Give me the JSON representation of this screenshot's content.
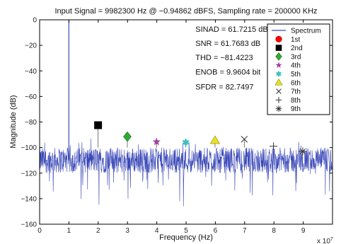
{
  "chart_data": {
    "type": "line",
    "title": "Input Signal = 9982300 Hz @ −0.94862 dBFS, Sampling rate = 200000 KHz",
    "xlabel": "Frequency (Hz)",
    "ylabel": "Magnitude (dB)",
    "x_exponent_label": "x 10",
    "x_exponent_power": "7",
    "xlim": [
      0,
      10
    ],
    "ylim": [
      -160,
      0
    ],
    "x_ticks": [
      "0",
      "1",
      "2",
      "3",
      "4",
      "5",
      "6",
      "7",
      "8",
      "9"
    ],
    "y_ticks": [
      "0",
      "−20",
      "−40",
      "−60",
      "−80",
      "−100",
      "−120",
      "−140",
      "−160"
    ],
    "x_tick_values": [
      0,
      1,
      2,
      3,
      4,
      5,
      6,
      7,
      8,
      9
    ],
    "y_tick_values": [
      0,
      -20,
      -40,
      -60,
      -80,
      -100,
      -120,
      -140,
      -160
    ],
    "grid": false,
    "legend_position": "top-right",
    "spectrum": {
      "name": "Spectrum",
      "color": "#3b49b8",
      "noise_floor_db": -110,
      "noise_spread_db": 10,
      "fundamental": {
        "x": 0.99823,
        "y": -0.94862
      }
    },
    "harmonics": [
      {
        "name": "1st",
        "x": 0.998,
        "y": -0.95,
        "marker": "circle",
        "color": "#ff0000"
      },
      {
        "name": "2nd",
        "x": 1.996,
        "y": -82.5,
        "marker": "square",
        "color": "#000000"
      },
      {
        "name": "3rd",
        "x": 2.995,
        "y": -91.5,
        "marker": "diamond",
        "color": "#33aa33"
      },
      {
        "name": "4th",
        "x": 3.993,
        "y": -95.5,
        "marker": "pentagram",
        "color": "#a040a0"
      },
      {
        "name": "5th",
        "x": 4.991,
        "y": -96.0,
        "marker": "hexagram",
        "color": "#40c0c0"
      },
      {
        "name": "6th",
        "x": 5.989,
        "y": -94.5,
        "marker": "triangle",
        "color": "#e8e020"
      },
      {
        "name": "7th",
        "x": 6.988,
        "y": -93.5,
        "marker": "x",
        "color": "#333333"
      },
      {
        "name": "8th",
        "x": 7.986,
        "y": -99.0,
        "marker": "plus",
        "color": "#333333"
      },
      {
        "name": "9th",
        "x": 8.984,
        "y": -103.0,
        "marker": "asterisk",
        "color": "#333333"
      }
    ],
    "annotations": [
      {
        "text": "SINAD = 61.7215 dB",
        "x": 5.32,
        "y": -9.5
      },
      {
        "text": "SNR = 61.7683 dB",
        "x": 5.32,
        "y": -20.5
      },
      {
        "text": "THD = −81.4223",
        "x": 5.32,
        "y": -31.5
      },
      {
        "text": "ENOB = 9.9604 bit",
        "x": 5.32,
        "y": -43
      },
      {
        "text": "SFDR = 82.7497",
        "x": 5.32,
        "y": -54.5
      }
    ]
  }
}
